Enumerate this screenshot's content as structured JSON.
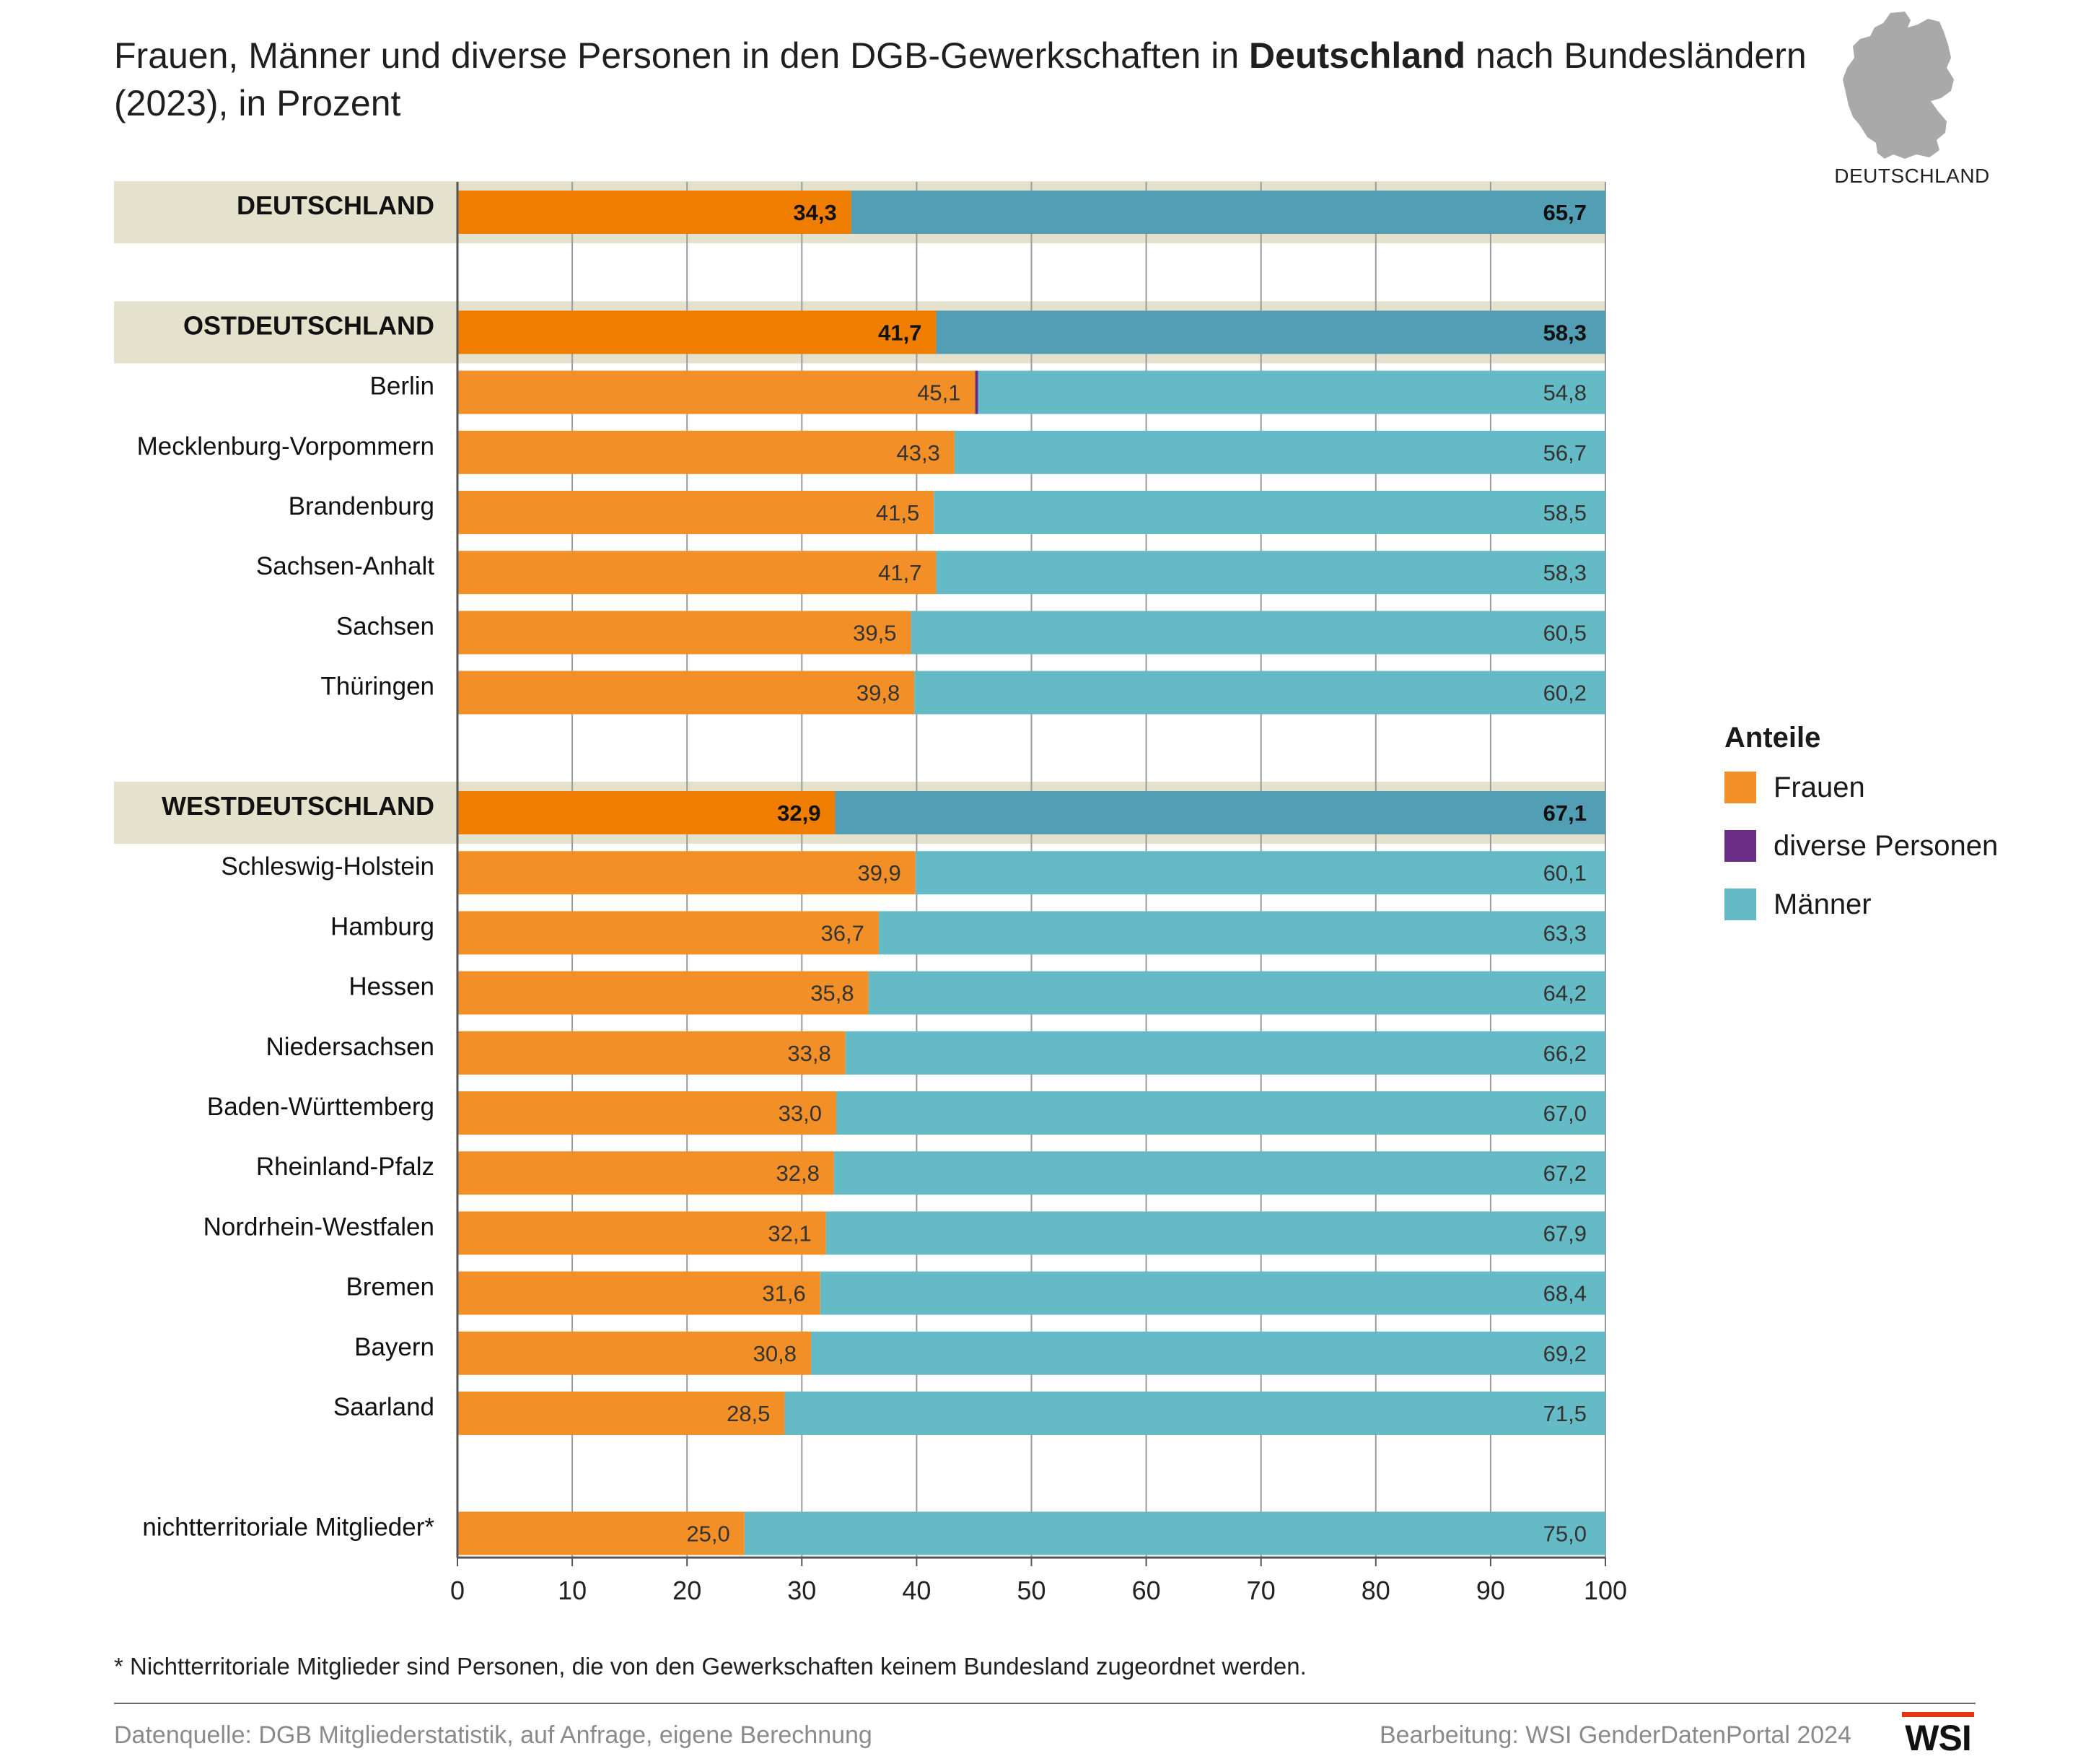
{
  "title": {
    "part1": "Frauen, Männer und diverse Personen in den DGB-Gewerkschaften in ",
    "bold": "Deutschland",
    "part2": " nach Bundesländern (2023), in Prozent"
  },
  "map_label": "DEUTSCHLAND",
  "legend": {
    "title": "Anteile",
    "items": [
      {
        "label": "Frauen",
        "color": "#f28f26"
      },
      {
        "label": "diverse Personen",
        "color": "#6b2d86"
      },
      {
        "label": "Männer",
        "color": "#64bbc5"
      }
    ]
  },
  "footnote": "* Nichtterritoriale Mitglieder sind Personen, die von den Gewerkschaften keinem Bundesland zugeordnet werden.",
  "source": "Datenquelle: DGB Mitgliederstatistik, auf Anfrage, eigene Berechnung",
  "credit": "Bearbeitung: WSI GenderDatenPortal 2024",
  "logo_text": "WSI",
  "chart_data": {
    "type": "bar",
    "orientation": "horizontal",
    "stacked": true,
    "xlim": [
      0,
      100
    ],
    "xticks": [
      "0",
      "10",
      "20",
      "30",
      "40",
      "50",
      "60",
      "70",
      "80",
      "90",
      "100"
    ],
    "grid": true,
    "legend_position": "right",
    "colors": {
      "frauen": "#f28f26",
      "frauen_aggregate": "#ee7d00",
      "diverse": "#6b2d86",
      "maenner": "#64bbc5",
      "maenner_aggregate": "#529fb5",
      "header_band": "#e4e1cc"
    },
    "series_names": [
      "Frauen",
      "diverse Personen",
      "Männer"
    ],
    "rows": [
      {
        "label": "DEUTSCHLAND",
        "aggregate": true,
        "frauen": 34.3,
        "diverse": 0,
        "maenner": 65.7,
        "frauen_label": "34,3",
        "maenner_label": "65,7"
      },
      {
        "spacer": true
      },
      {
        "label": "OSTDEUTSCHLAND",
        "aggregate": true,
        "frauen": 41.7,
        "diverse": 0,
        "maenner": 58.3,
        "frauen_label": "41,7",
        "maenner_label": "58,3"
      },
      {
        "label": "Berlin",
        "frauen": 45.1,
        "diverse": 0.1,
        "maenner": 54.8,
        "frauen_label": "45,1",
        "maenner_label": "54,8"
      },
      {
        "label": "Mecklenburg-Vorpommern",
        "frauen": 43.3,
        "diverse": 0,
        "maenner": 56.7,
        "frauen_label": "43,3",
        "maenner_label": "56,7"
      },
      {
        "label": "Brandenburg",
        "frauen": 41.5,
        "diverse": 0,
        "maenner": 58.5,
        "frauen_label": "41,5",
        "maenner_label": "58,5"
      },
      {
        "label": "Sachsen-Anhalt",
        "frauen": 41.7,
        "diverse": 0,
        "maenner": 58.3,
        "frauen_label": "41,7",
        "maenner_label": "58,3"
      },
      {
        "label": "Sachsen",
        "frauen": 39.5,
        "diverse": 0,
        "maenner": 60.5,
        "frauen_label": "39,5",
        "maenner_label": "60,5"
      },
      {
        "label": "Thüringen",
        "frauen": 39.8,
        "diverse": 0,
        "maenner": 60.2,
        "frauen_label": "39,8",
        "maenner_label": "60,2"
      },
      {
        "spacer": true
      },
      {
        "label": "WESTDEUTSCHLAND",
        "aggregate": true,
        "frauen": 32.9,
        "diverse": 0,
        "maenner": 67.1,
        "frauen_label": "32,9",
        "maenner_label": "67,1"
      },
      {
        "label": "Schleswig-Holstein",
        "frauen": 39.9,
        "diverse": 0,
        "maenner": 60.1,
        "frauen_label": "39,9",
        "maenner_label": "60,1"
      },
      {
        "label": "Hamburg",
        "frauen": 36.7,
        "diverse": 0,
        "maenner": 63.3,
        "frauen_label": "36,7",
        "maenner_label": "63,3"
      },
      {
        "label": "Hessen",
        "frauen": 35.8,
        "diverse": 0,
        "maenner": 64.2,
        "frauen_label": "35,8",
        "maenner_label": "64,2"
      },
      {
        "label": "Niedersachsen",
        "frauen": 33.8,
        "diverse": 0,
        "maenner": 66.2,
        "frauen_label": "33,8",
        "maenner_label": "66,2"
      },
      {
        "label": "Baden-Württemberg",
        "frauen": 33.0,
        "diverse": 0,
        "maenner": 67.0,
        "frauen_label": "33,0",
        "maenner_label": "67,0"
      },
      {
        "label": "Rheinland-Pfalz",
        "frauen": 32.8,
        "diverse": 0,
        "maenner": 67.2,
        "frauen_label": "32,8",
        "maenner_label": "67,2"
      },
      {
        "label": "Nordrhein-Westfalen",
        "frauen": 32.1,
        "diverse": 0,
        "maenner": 67.9,
        "frauen_label": "32,1",
        "maenner_label": "67,9"
      },
      {
        "label": "Bremen",
        "frauen": 31.6,
        "diverse": 0,
        "maenner": 68.4,
        "frauen_label": "31,6",
        "maenner_label": "68,4"
      },
      {
        "label": "Bayern",
        "frauen": 30.8,
        "diverse": 0,
        "maenner": 69.2,
        "frauen_label": "30,8",
        "maenner_label": "69,2"
      },
      {
        "label": "Saarland",
        "frauen": 28.5,
        "diverse": 0,
        "maenner": 71.5,
        "frauen_label": "28,5",
        "maenner_label": "71,5"
      },
      {
        "spacer": true
      },
      {
        "label": "nichtterritoriale Mitglieder*",
        "frauen": 25.0,
        "diverse": 0,
        "maenner": 75.0,
        "frauen_label": "25,0",
        "maenner_label": "75,0"
      }
    ]
  }
}
